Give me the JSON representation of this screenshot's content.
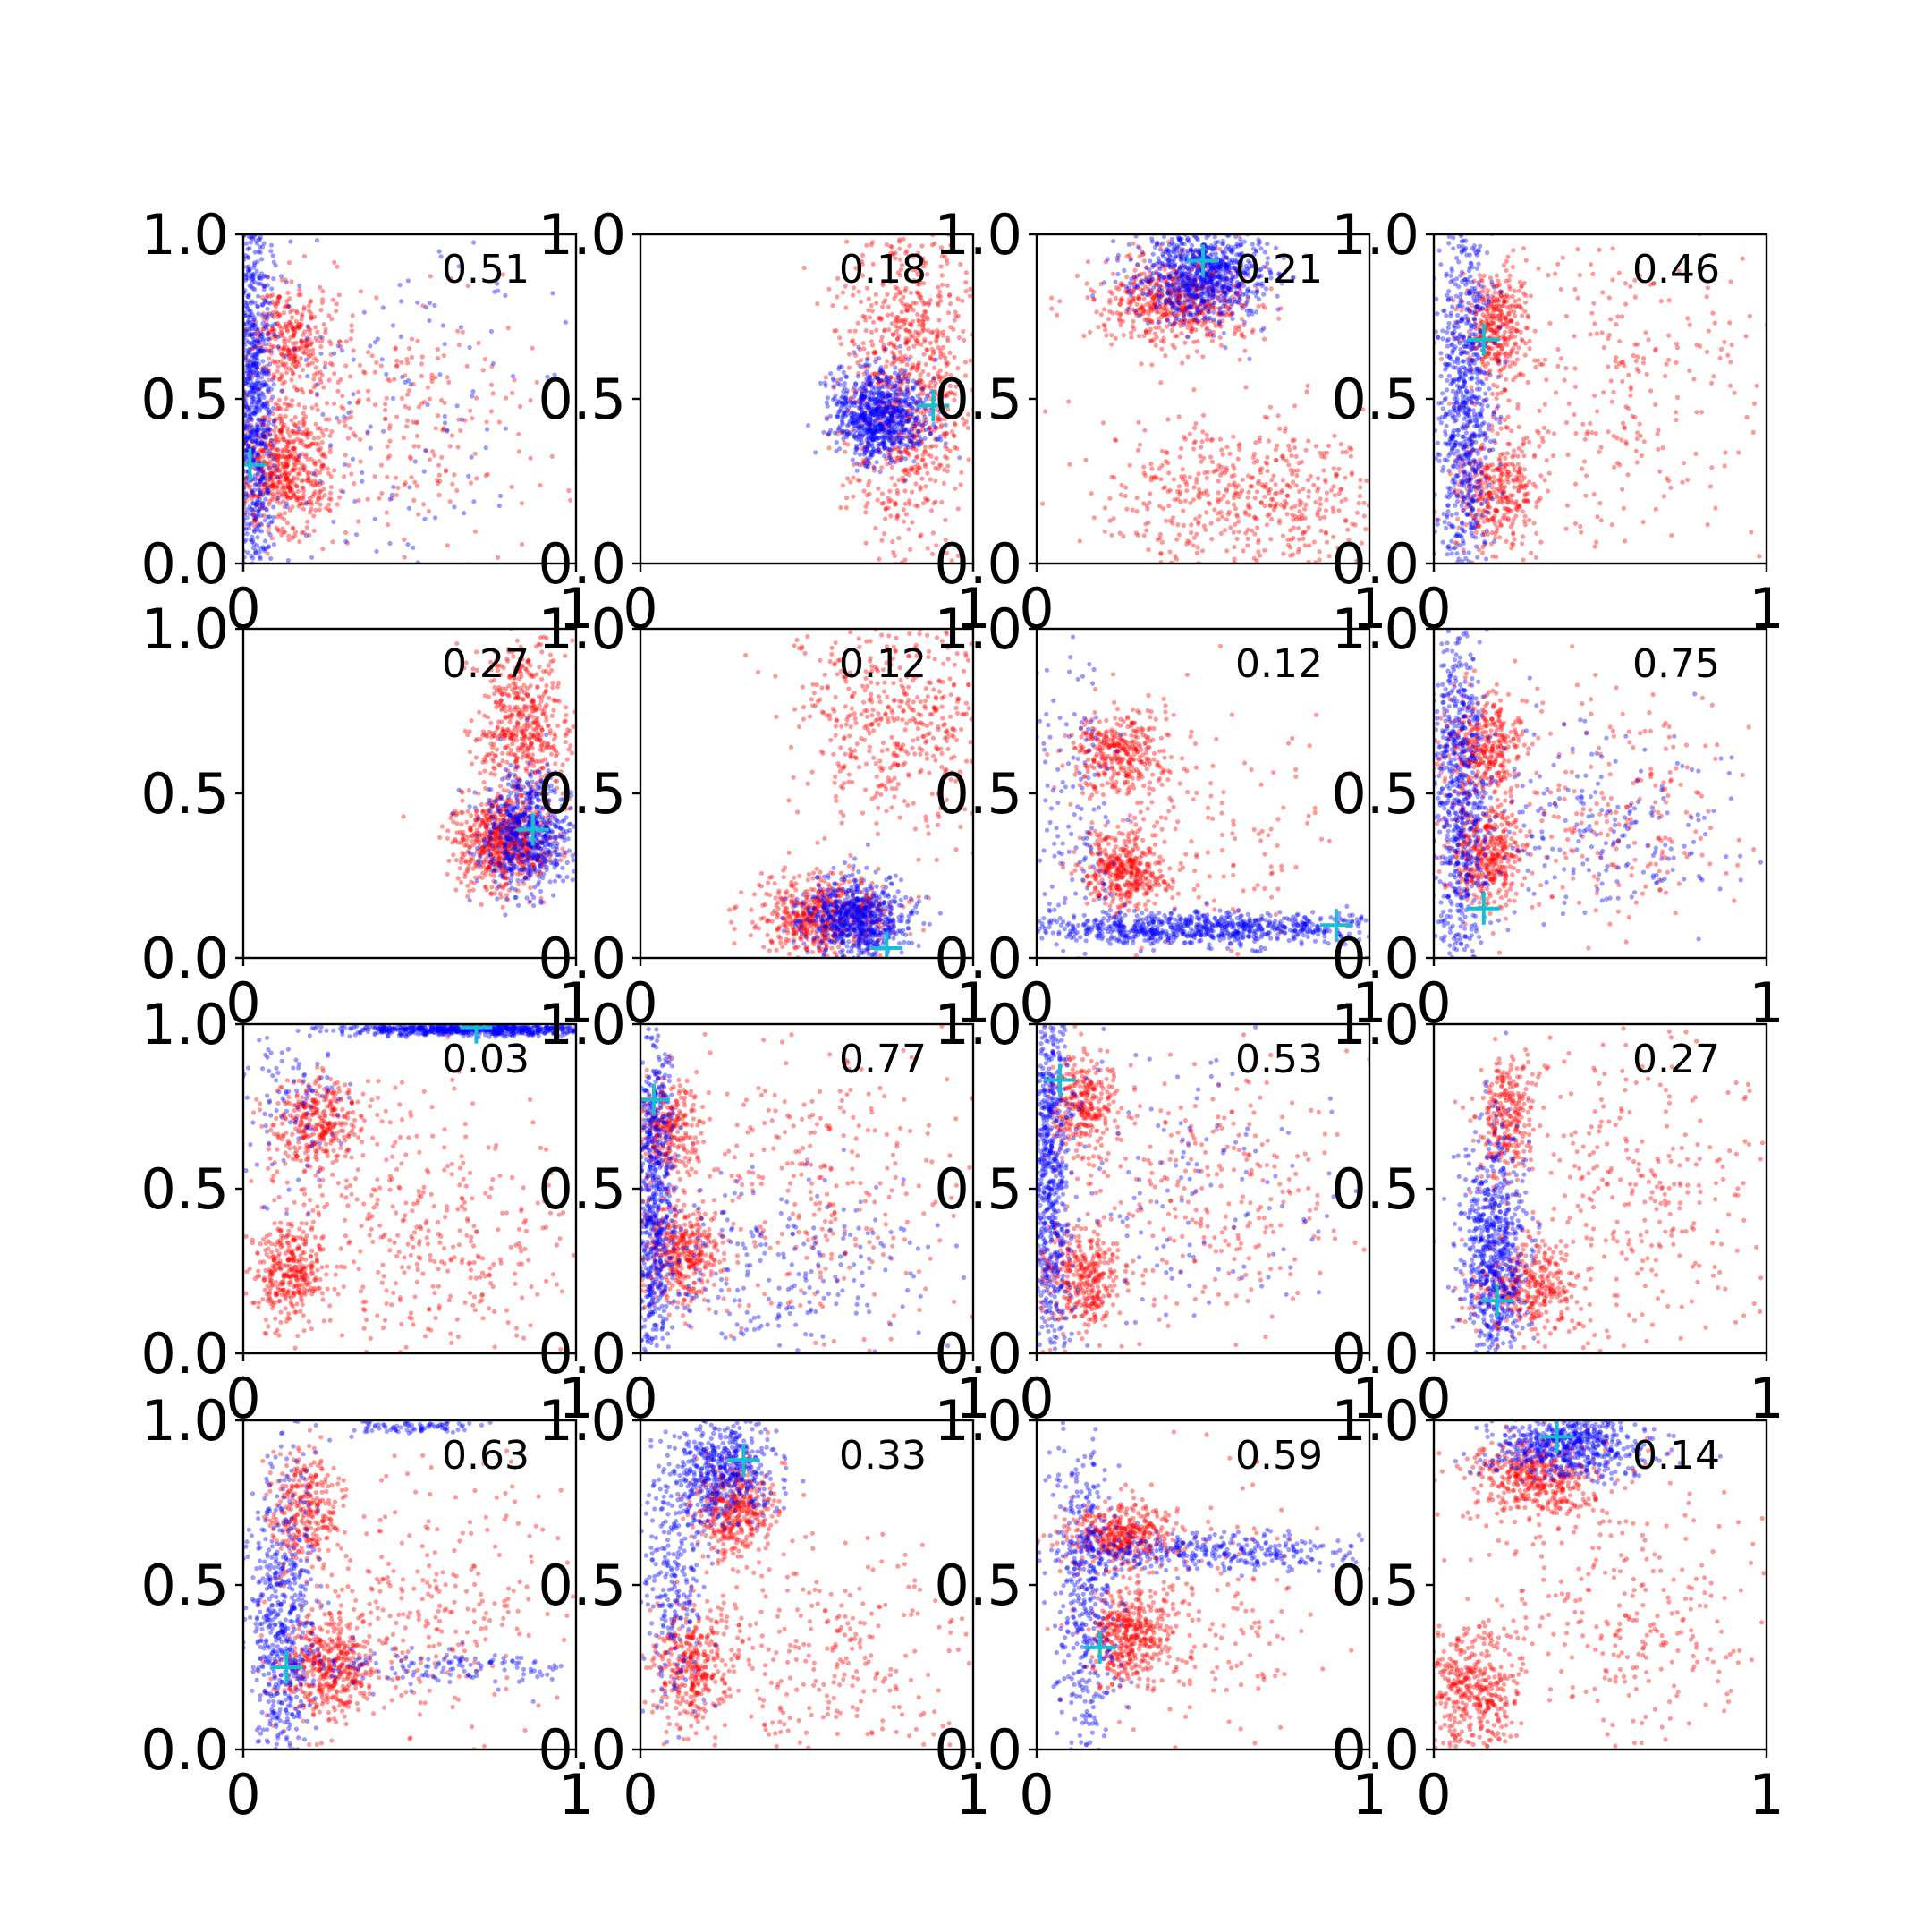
{
  "chart_data": {
    "type": "scatter",
    "layout": "4x4 grid of scatter subplots",
    "xlim": [
      0,
      1
    ],
    "ylim": [
      0,
      1
    ],
    "x_tick_labels": [
      "0",
      "1"
    ],
    "y_tick_labels": [
      "0.0",
      "0.5",
      "1.0"
    ],
    "colors": {
      "blue_series": "#0000ff",
      "red_series": "#ff0000",
      "marker": "#17becf",
      "axes": "#000000"
    },
    "point_alpha": 0.4,
    "grid": false,
    "legend": "none",
    "panels": [
      {
        "label": "0.51",
        "marker": [
          0.02,
          0.3
        ],
        "blue": [
          {
            "cx": 0.03,
            "cy": 0.5,
            "sx": 0.03,
            "sy": 0.35,
            "n": 900
          },
          {
            "cx": 0.4,
            "cy": 0.45,
            "sx": 0.3,
            "sy": 0.35,
            "n": 180
          }
        ],
        "red": [
          {
            "cx": 0.12,
            "cy": 0.28,
            "sx": 0.07,
            "sy": 0.1,
            "n": 550
          },
          {
            "cx": 0.14,
            "cy": 0.68,
            "sx": 0.06,
            "sy": 0.08,
            "n": 300
          },
          {
            "cx": 0.45,
            "cy": 0.45,
            "sx": 0.22,
            "sy": 0.2,
            "n": 300
          }
        ]
      },
      {
        "label": "0.18",
        "marker": [
          0.88,
          0.48
        ],
        "blue": [
          {
            "cx": 0.72,
            "cy": 0.45,
            "sx": 0.07,
            "sy": 0.07,
            "n": 800
          }
        ],
        "red": [
          {
            "cx": 0.8,
            "cy": 0.55,
            "sx": 0.1,
            "sy": 0.25,
            "n": 900
          }
        ]
      },
      {
        "label": "0.21",
        "marker": [
          0.5,
          0.92
        ],
        "blue": [
          {
            "cx": 0.5,
            "cy": 0.88,
            "sx": 0.1,
            "sy": 0.07,
            "n": 800
          }
        ],
        "red": [
          {
            "cx": 0.42,
            "cy": 0.8,
            "sx": 0.12,
            "sy": 0.07,
            "n": 600
          },
          {
            "cx": 0.62,
            "cy": 0.2,
            "sx": 0.22,
            "sy": 0.12,
            "n": 550
          }
        ]
      },
      {
        "label": "0.46",
        "marker": [
          0.15,
          0.68
        ],
        "blue": [
          {
            "cx": 0.09,
            "cy": 0.5,
            "sx": 0.04,
            "sy": 0.3,
            "n": 800
          }
        ],
        "red": [
          {
            "cx": 0.18,
            "cy": 0.72,
            "sx": 0.05,
            "sy": 0.09,
            "n": 350
          },
          {
            "cx": 0.18,
            "cy": 0.22,
            "sx": 0.06,
            "sy": 0.09,
            "n": 350
          },
          {
            "cx": 0.55,
            "cy": 0.5,
            "sx": 0.25,
            "sy": 0.25,
            "n": 300
          }
        ]
      },
      {
        "label": "0.27",
        "marker": [
          0.87,
          0.39
        ],
        "blue": [
          {
            "cx": 0.85,
            "cy": 0.38,
            "sx": 0.07,
            "sy": 0.09,
            "n": 600
          }
        ],
        "red": [
          {
            "cx": 0.78,
            "cy": 0.35,
            "sx": 0.07,
            "sy": 0.07,
            "n": 700
          },
          {
            "cx": 0.84,
            "cy": 0.72,
            "sx": 0.07,
            "sy": 0.12,
            "n": 500
          }
        ]
      },
      {
        "label": "0.12",
        "marker": [
          0.74,
          0.03
        ],
        "blue": [
          {
            "cx": 0.65,
            "cy": 0.12,
            "sx": 0.08,
            "sy": 0.06,
            "n": 700
          }
        ],
        "red": [
          {
            "cx": 0.55,
            "cy": 0.13,
            "sx": 0.1,
            "sy": 0.06,
            "n": 600
          },
          {
            "cx": 0.78,
            "cy": 0.75,
            "sx": 0.16,
            "sy": 0.18,
            "n": 550
          }
        ]
      },
      {
        "label": "0.12",
        "marker": [
          0.9,
          0.1
        ],
        "blue": [
          {
            "cx": 0.5,
            "cy": 0.09,
            "sx": 0.3,
            "sy": 0.025,
            "n": 800
          },
          {
            "cx": 0.1,
            "cy": 0.4,
            "sx": 0.08,
            "sy": 0.3,
            "n": 150
          }
        ],
        "red": [
          {
            "cx": 0.25,
            "cy": 0.62,
            "sx": 0.07,
            "sy": 0.06,
            "n": 350
          },
          {
            "cx": 0.26,
            "cy": 0.27,
            "sx": 0.06,
            "sy": 0.06,
            "n": 400
          },
          {
            "cx": 0.5,
            "cy": 0.4,
            "sx": 0.2,
            "sy": 0.2,
            "n": 150
          }
        ]
      },
      {
        "label": "0.75",
        "marker": [
          0.15,
          0.15
        ],
        "blue": [
          {
            "cx": 0.08,
            "cy": 0.45,
            "sx": 0.04,
            "sy": 0.3,
            "n": 700
          },
          {
            "cx": 0.45,
            "cy": 0.4,
            "sx": 0.25,
            "sy": 0.15,
            "n": 250
          }
        ],
        "red": [
          {
            "cx": 0.15,
            "cy": 0.65,
            "sx": 0.06,
            "sy": 0.08,
            "n": 350
          },
          {
            "cx": 0.16,
            "cy": 0.32,
            "sx": 0.06,
            "sy": 0.08,
            "n": 400
          },
          {
            "cx": 0.5,
            "cy": 0.45,
            "sx": 0.22,
            "sy": 0.18,
            "n": 250
          }
        ]
      },
      {
        "label": "0.03",
        "marker": [
          0.7,
          0.99
        ],
        "blue": [
          {
            "cx": 0.7,
            "cy": 0.985,
            "sx": 0.2,
            "sy": 0.01,
            "n": 700
          },
          {
            "cx": 0.15,
            "cy": 0.75,
            "sx": 0.08,
            "sy": 0.15,
            "n": 100
          }
        ],
        "red": [
          {
            "cx": 0.22,
            "cy": 0.7,
            "sx": 0.07,
            "sy": 0.07,
            "n": 350
          },
          {
            "cx": 0.14,
            "cy": 0.25,
            "sx": 0.06,
            "sy": 0.09,
            "n": 350
          },
          {
            "cx": 0.55,
            "cy": 0.35,
            "sx": 0.22,
            "sy": 0.22,
            "n": 400
          }
        ]
      },
      {
        "label": "0.77",
        "marker": [
          0.04,
          0.77
        ],
        "blue": [
          {
            "cx": 0.04,
            "cy": 0.5,
            "sx": 0.03,
            "sy": 0.3,
            "n": 700
          },
          {
            "cx": 0.4,
            "cy": 0.25,
            "sx": 0.25,
            "sy": 0.15,
            "n": 250
          }
        ],
        "red": [
          {
            "cx": 0.08,
            "cy": 0.68,
            "sx": 0.05,
            "sy": 0.07,
            "n": 300
          },
          {
            "cx": 0.12,
            "cy": 0.3,
            "sx": 0.07,
            "sy": 0.08,
            "n": 400
          },
          {
            "cx": 0.5,
            "cy": 0.5,
            "sx": 0.22,
            "sy": 0.22,
            "n": 300
          }
        ]
      },
      {
        "label": "0.53",
        "marker": [
          0.07,
          0.83
        ],
        "blue": [
          {
            "cx": 0.04,
            "cy": 0.55,
            "sx": 0.03,
            "sy": 0.3,
            "n": 700
          },
          {
            "cx": 0.45,
            "cy": 0.5,
            "sx": 0.25,
            "sy": 0.25,
            "n": 150
          }
        ],
        "red": [
          {
            "cx": 0.14,
            "cy": 0.75,
            "sx": 0.05,
            "sy": 0.08,
            "n": 300
          },
          {
            "cx": 0.14,
            "cy": 0.22,
            "sx": 0.06,
            "sy": 0.08,
            "n": 350
          },
          {
            "cx": 0.5,
            "cy": 0.5,
            "sx": 0.22,
            "sy": 0.22,
            "n": 300
          }
        ]
      },
      {
        "label": "0.27",
        "marker": [
          0.19,
          0.16
        ],
        "blue": [
          {
            "cx": 0.18,
            "cy": 0.3,
            "sx": 0.05,
            "sy": 0.18,
            "n": 700
          }
        ],
        "red": [
          {
            "cx": 0.22,
            "cy": 0.72,
            "sx": 0.04,
            "sy": 0.09,
            "n": 250
          },
          {
            "cx": 0.28,
            "cy": 0.2,
            "sx": 0.08,
            "sy": 0.07,
            "n": 350
          },
          {
            "cx": 0.6,
            "cy": 0.5,
            "sx": 0.22,
            "sy": 0.25,
            "n": 350
          }
        ]
      },
      {
        "label": "0.63",
        "marker": [
          0.13,
          0.25
        ],
        "blue": [
          {
            "cx": 0.12,
            "cy": 0.35,
            "sx": 0.05,
            "sy": 0.25,
            "n": 600
          },
          {
            "cx": 0.6,
            "cy": 0.25,
            "sx": 0.25,
            "sy": 0.03,
            "n": 150
          },
          {
            "cx": 0.5,
            "cy": 0.98,
            "sx": 0.1,
            "sy": 0.01,
            "n": 80
          }
        ],
        "red": [
          {
            "cx": 0.18,
            "cy": 0.72,
            "sx": 0.05,
            "sy": 0.09,
            "n": 300
          },
          {
            "cx": 0.25,
            "cy": 0.25,
            "sx": 0.07,
            "sy": 0.08,
            "n": 450
          },
          {
            "cx": 0.55,
            "cy": 0.45,
            "sx": 0.22,
            "sy": 0.22,
            "n": 300
          }
        ]
      },
      {
        "label": "0.33",
        "marker": [
          0.31,
          0.88
        ],
        "blue": [
          {
            "cx": 0.25,
            "cy": 0.85,
            "sx": 0.08,
            "sy": 0.08,
            "n": 500
          },
          {
            "cx": 0.1,
            "cy": 0.5,
            "sx": 0.05,
            "sy": 0.2,
            "n": 250
          }
        ],
        "red": [
          {
            "cx": 0.28,
            "cy": 0.73,
            "sx": 0.06,
            "sy": 0.07,
            "n": 400
          },
          {
            "cx": 0.15,
            "cy": 0.25,
            "sx": 0.06,
            "sy": 0.1,
            "n": 350
          },
          {
            "cx": 0.55,
            "cy": 0.3,
            "sx": 0.22,
            "sy": 0.18,
            "n": 300
          }
        ]
      },
      {
        "label": "0.59",
        "marker": [
          0.19,
          0.31
        ],
        "blue": [
          {
            "cx": 0.15,
            "cy": 0.45,
            "sx": 0.05,
            "sy": 0.25,
            "n": 450
          },
          {
            "cx": 0.55,
            "cy": 0.6,
            "sx": 0.25,
            "sy": 0.03,
            "n": 350
          }
        ],
        "red": [
          {
            "cx": 0.25,
            "cy": 0.65,
            "sx": 0.08,
            "sy": 0.05,
            "n": 400
          },
          {
            "cx": 0.28,
            "cy": 0.35,
            "sx": 0.06,
            "sy": 0.07,
            "n": 400
          },
          {
            "cx": 0.5,
            "cy": 0.4,
            "sx": 0.2,
            "sy": 0.2,
            "n": 200
          }
        ]
      },
      {
        "label": "0.14",
        "marker": [
          0.37,
          0.95
        ],
        "blue": [
          {
            "cx": 0.4,
            "cy": 0.93,
            "sx": 0.12,
            "sy": 0.05,
            "n": 600
          }
        ],
        "red": [
          {
            "cx": 0.3,
            "cy": 0.83,
            "sx": 0.1,
            "sy": 0.06,
            "n": 450
          },
          {
            "cx": 0.12,
            "cy": 0.18,
            "sx": 0.07,
            "sy": 0.1,
            "n": 400
          },
          {
            "cx": 0.55,
            "cy": 0.4,
            "sx": 0.22,
            "sy": 0.22,
            "n": 300
          }
        ]
      }
    ]
  }
}
